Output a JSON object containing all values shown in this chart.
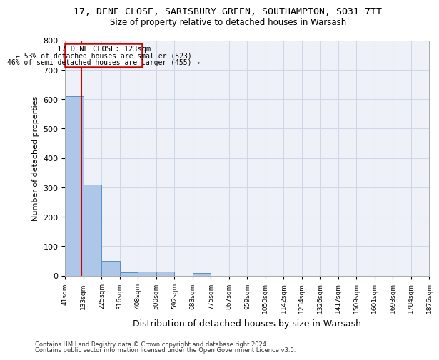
{
  "title": "17, DENE CLOSE, SARISBURY GREEN, SOUTHAMPTON, SO31 7TT",
  "subtitle": "Size of property relative to detached houses in Warsash",
  "xlabel": "Distribution of detached houses by size in Warsash",
  "ylabel": "Number of detached properties",
  "footnote1": "Contains HM Land Registry data © Crown copyright and database right 2024.",
  "footnote2": "Contains public sector information licensed under the Open Government Licence v3.0.",
  "bin_edges": [
    41,
    133,
    225,
    316,
    408,
    500,
    592,
    683,
    775,
    867,
    959,
    1050,
    1142,
    1234,
    1326,
    1417,
    1509,
    1601,
    1693,
    1784,
    1876
  ],
  "bar_heights": [
    610,
    310,
    50,
    10,
    13,
    13,
    0,
    8,
    0,
    0,
    0,
    0,
    0,
    0,
    0,
    0,
    0,
    0,
    0,
    0
  ],
  "bar_color": "#aec6e8",
  "bar_edge_color": "#5a8fc3",
  "grid_color": "#d0d8e8",
  "background_color": "#eef2f8",
  "property_size": 123,
  "property_label": "17 DENE CLOSE: 123sqm",
  "annotation_line1": "← 53% of detached houses are smaller (523)",
  "annotation_line2": "46% of semi-detached houses are larger (455) →",
  "annotation_box_color": "#cc0000",
  "vline_color": "#cc0000",
  "ylim": [
    0,
    800
  ],
  "yticks": [
    0,
    100,
    200,
    300,
    400,
    500,
    600,
    700,
    800
  ],
  "tick_labels": [
    "41sqm",
    "133sqm",
    "225sqm",
    "316sqm",
    "408sqm",
    "500sqm",
    "592sqm",
    "683sqm",
    "775sqm",
    "867sqm",
    "959sqm",
    "1050sqm",
    "1142sqm",
    "1234sqm",
    "1326sqm",
    "1417sqm",
    "1509sqm",
    "1601sqm",
    "1693sqm",
    "1784sqm",
    "1876sqm"
  ]
}
